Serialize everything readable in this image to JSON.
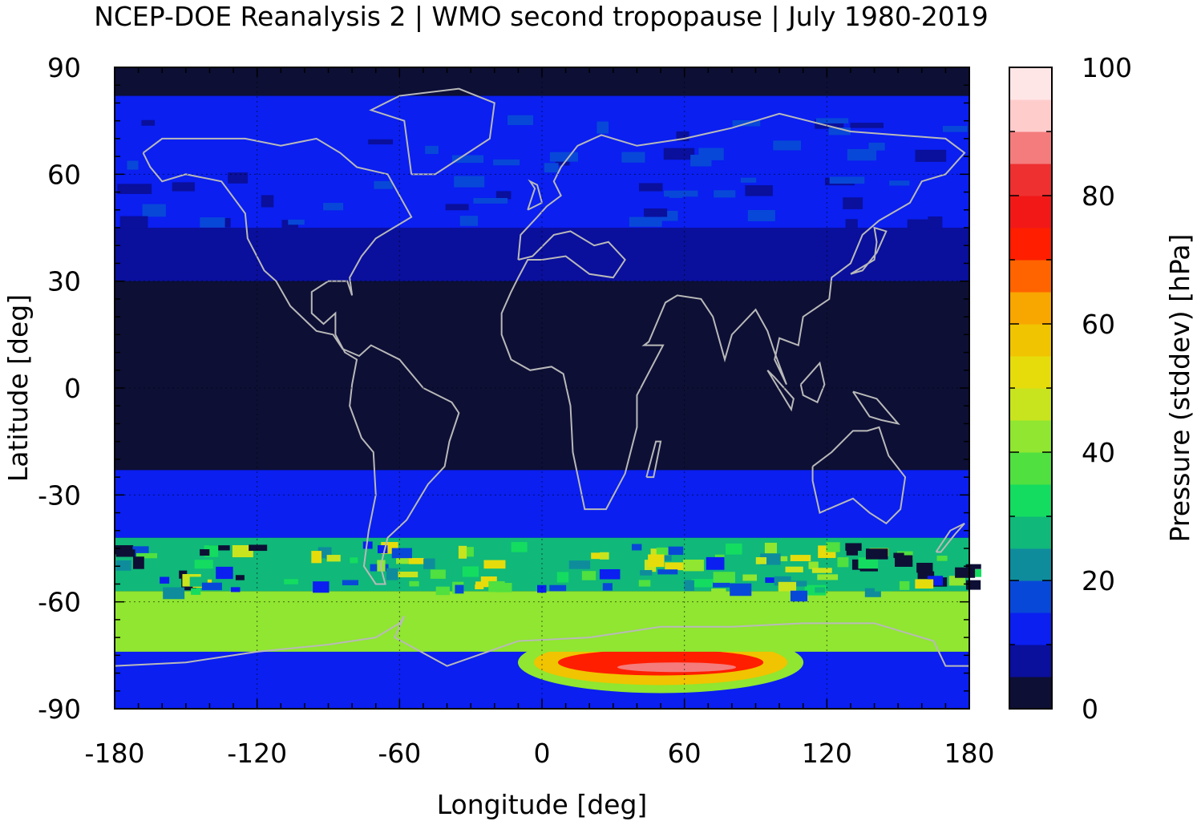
{
  "chart_data": {
    "type": "heatmap",
    "title": "NCEP-DOE Reanalysis 2 | WMO second tropopause | July 1980-2019",
    "xlabel": "Longitude [deg]",
    "ylabel": "Latitude [deg]",
    "colorbar_label": "Pressure (stddev) [hPa]",
    "xlim": [
      -180,
      180
    ],
    "ylim": [
      -90,
      90
    ],
    "x_ticks": [
      -180,
      -120,
      -60,
      0,
      60,
      120,
      180
    ],
    "y_ticks": [
      90,
      60,
      30,
      0,
      -30,
      -60,
      -90
    ],
    "colorbar_ticks": [
      0,
      20,
      40,
      60,
      80,
      100
    ],
    "colorbar_range": [
      0,
      100
    ],
    "colorbar_step": 5,
    "colorbar_colors": [
      "#0d0f35",
      "#0a0f9c",
      "#0a1ff0",
      "#0848d8",
      "#0e8c9c",
      "#10b87a",
      "#14dc60",
      "#50e040",
      "#90e630",
      "#c8e41e",
      "#e6dc0c",
      "#f0c400",
      "#f8a600",
      "#ff6400",
      "#ff1e00",
      "#f21818",
      "#ee3030",
      "#f47c7c",
      "#ffcccc",
      "#ffe6e6"
    ],
    "grid": "dotted at ±60 lat and ±60/0/120 lon",
    "overlay": "gray coastlines",
    "zonal_structure": [
      {
        "lat_range": [
          -90,
          -66
        ],
        "value": 12,
        "note": "low over Antarctic interior"
      },
      {
        "lat_range": [
          -82,
          -72
        ],
        "lon_range": [
          0,
          100
        ],
        "value": 70,
        "note": "peak ~85 near 75E,-82"
      },
      {
        "lat_range": [
          -74,
          -57
        ],
        "value": 40
      },
      {
        "lat_range": [
          -57,
          -42
        ],
        "value": 25,
        "note": "patchy, dark holes near -180..-110 and 120..180"
      },
      {
        "lat_range": [
          -42,
          -23
        ],
        "value": 12
      },
      {
        "lat_range": [
          -23,
          30
        ],
        "value": 2
      },
      {
        "lat_range": [
          30,
          45
        ],
        "value": 6
      },
      {
        "lat_range": [
          45,
          82
        ],
        "value": 13
      },
      {
        "lat_range": [
          82,
          90
        ],
        "value": 3
      }
    ]
  }
}
